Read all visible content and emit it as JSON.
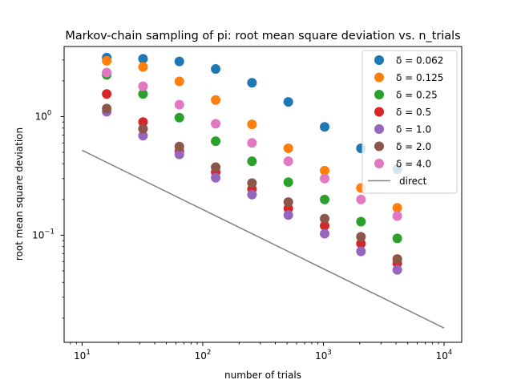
{
  "chart_data": {
    "type": "scatter",
    "title": "Markov-chain sampling of pi: root mean square deviation vs. n_trials",
    "xlabel": "number of trials",
    "ylabel": "root mean square deviation",
    "xscale": "log",
    "yscale": "log",
    "xlim": [
      7.1,
      14000
    ],
    "ylim": [
      0.0125,
      3.9
    ],
    "x_ticks": [
      {
        "value": 10,
        "base": "10",
        "exp": "1"
      },
      {
        "value": 100,
        "base": "10",
        "exp": "2"
      },
      {
        "value": 1000,
        "base": "10",
        "exp": "3"
      },
      {
        "value": 10000,
        "base": "10",
        "exp": "4"
      }
    ],
    "y_ticks": [
      {
        "value": 0.1,
        "base": "10",
        "exp": "−1"
      },
      {
        "value": 1,
        "base": "10",
        "exp": "0"
      }
    ],
    "x": [
      16,
      32,
      64,
      128,
      256,
      512,
      1024,
      2048,
      4096
    ],
    "series": [
      {
        "name": "δ = 0.062",
        "color": "#1f77b4",
        "values": [
          3.14,
          3.07,
          2.92,
          2.52,
          1.93,
          1.33,
          0.82,
          0.54,
          0.36
        ]
      },
      {
        "name": "δ = 0.125",
        "color": "#ff7f0e",
        "values": [
          2.95,
          2.62,
          1.98,
          1.38,
          0.86,
          0.54,
          0.35,
          0.25,
          0.17
        ]
      },
      {
        "name": "δ = 0.25",
        "color": "#2ca02c",
        "values": [
          2.25,
          1.55,
          0.98,
          0.62,
          0.42,
          0.28,
          0.2,
          0.13,
          0.094
        ]
      },
      {
        "name": "δ = 0.5",
        "color": "#d62728",
        "values": [
          1.55,
          0.9,
          0.51,
          0.34,
          0.245,
          0.168,
          0.12,
          0.085,
          0.058
        ]
      },
      {
        "name": "δ = 1.0",
        "color": "#9467bd",
        "values": [
          1.1,
          0.69,
          0.48,
          0.305,
          0.22,
          0.148,
          0.103,
          0.073,
          0.051
        ]
      },
      {
        "name": "δ = 2.0",
        "color": "#8c564b",
        "values": [
          1.17,
          0.79,
          0.56,
          0.375,
          0.275,
          0.19,
          0.138,
          0.097,
          0.063
        ]
      },
      {
        "name": "δ = 4.0",
        "color": "#e377c2",
        "values": [
          2.35,
          1.8,
          1.26,
          0.87,
          0.6,
          0.42,
          0.3,
          0.2,
          0.145
        ]
      }
    ],
    "line": {
      "name": "direct",
      "color": "#808080",
      "x": [
        10,
        10000
      ],
      "y": [
        0.52,
        0.0165
      ]
    },
    "legend": {
      "placement": "top-right"
    },
    "grid": false
  }
}
